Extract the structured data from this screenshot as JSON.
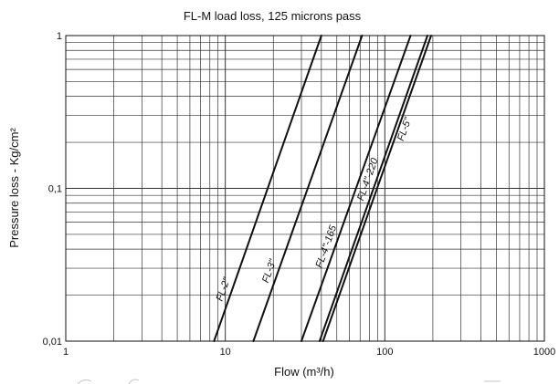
{
  "chart_data": {
    "type": "line",
    "title": "FL-M load loss, 125 microns pass",
    "xlabel": "Flow (m³/h)",
    "ylabel": "Pressure loss - Kg/cm²",
    "xscale": "log",
    "yscale": "log",
    "xlim": [
      1,
      1000
    ],
    "ylim": [
      0.01,
      1
    ],
    "grid": true,
    "x_tick_labels": [
      {
        "value": 1,
        "label": "1"
      },
      {
        "value": 10,
        "label": "10"
      },
      {
        "value": 100,
        "label": "100"
      },
      {
        "value": 1000,
        "label": "1000"
      }
    ],
    "y_tick_labels": [
      {
        "value": 0.01,
        "label": "0,01"
      },
      {
        "value": 0.1,
        "label": "0,1"
      },
      {
        "value": 1,
        "label": "1"
      }
    ],
    "series": [
      {
        "name": "FL-2\"",
        "x": [
          8.5,
          40
        ],
        "y": [
          0.01,
          1
        ]
      },
      {
        "name": "FL-3\"",
        "x": [
          15,
          72
        ],
        "y": [
          0.01,
          1
        ]
      },
      {
        "name": "FL-4\"-165",
        "x": [
          30,
          145
        ],
        "y": [
          0.01,
          1
        ]
      },
      {
        "name": "FL-4\"-220",
        "x": [
          39,
          185
        ],
        "y": [
          0.01,
          1
        ]
      },
      {
        "name": "FL-5\"",
        "x": [
          41,
          195
        ],
        "y": [
          0.01,
          1
        ]
      }
    ]
  }
}
